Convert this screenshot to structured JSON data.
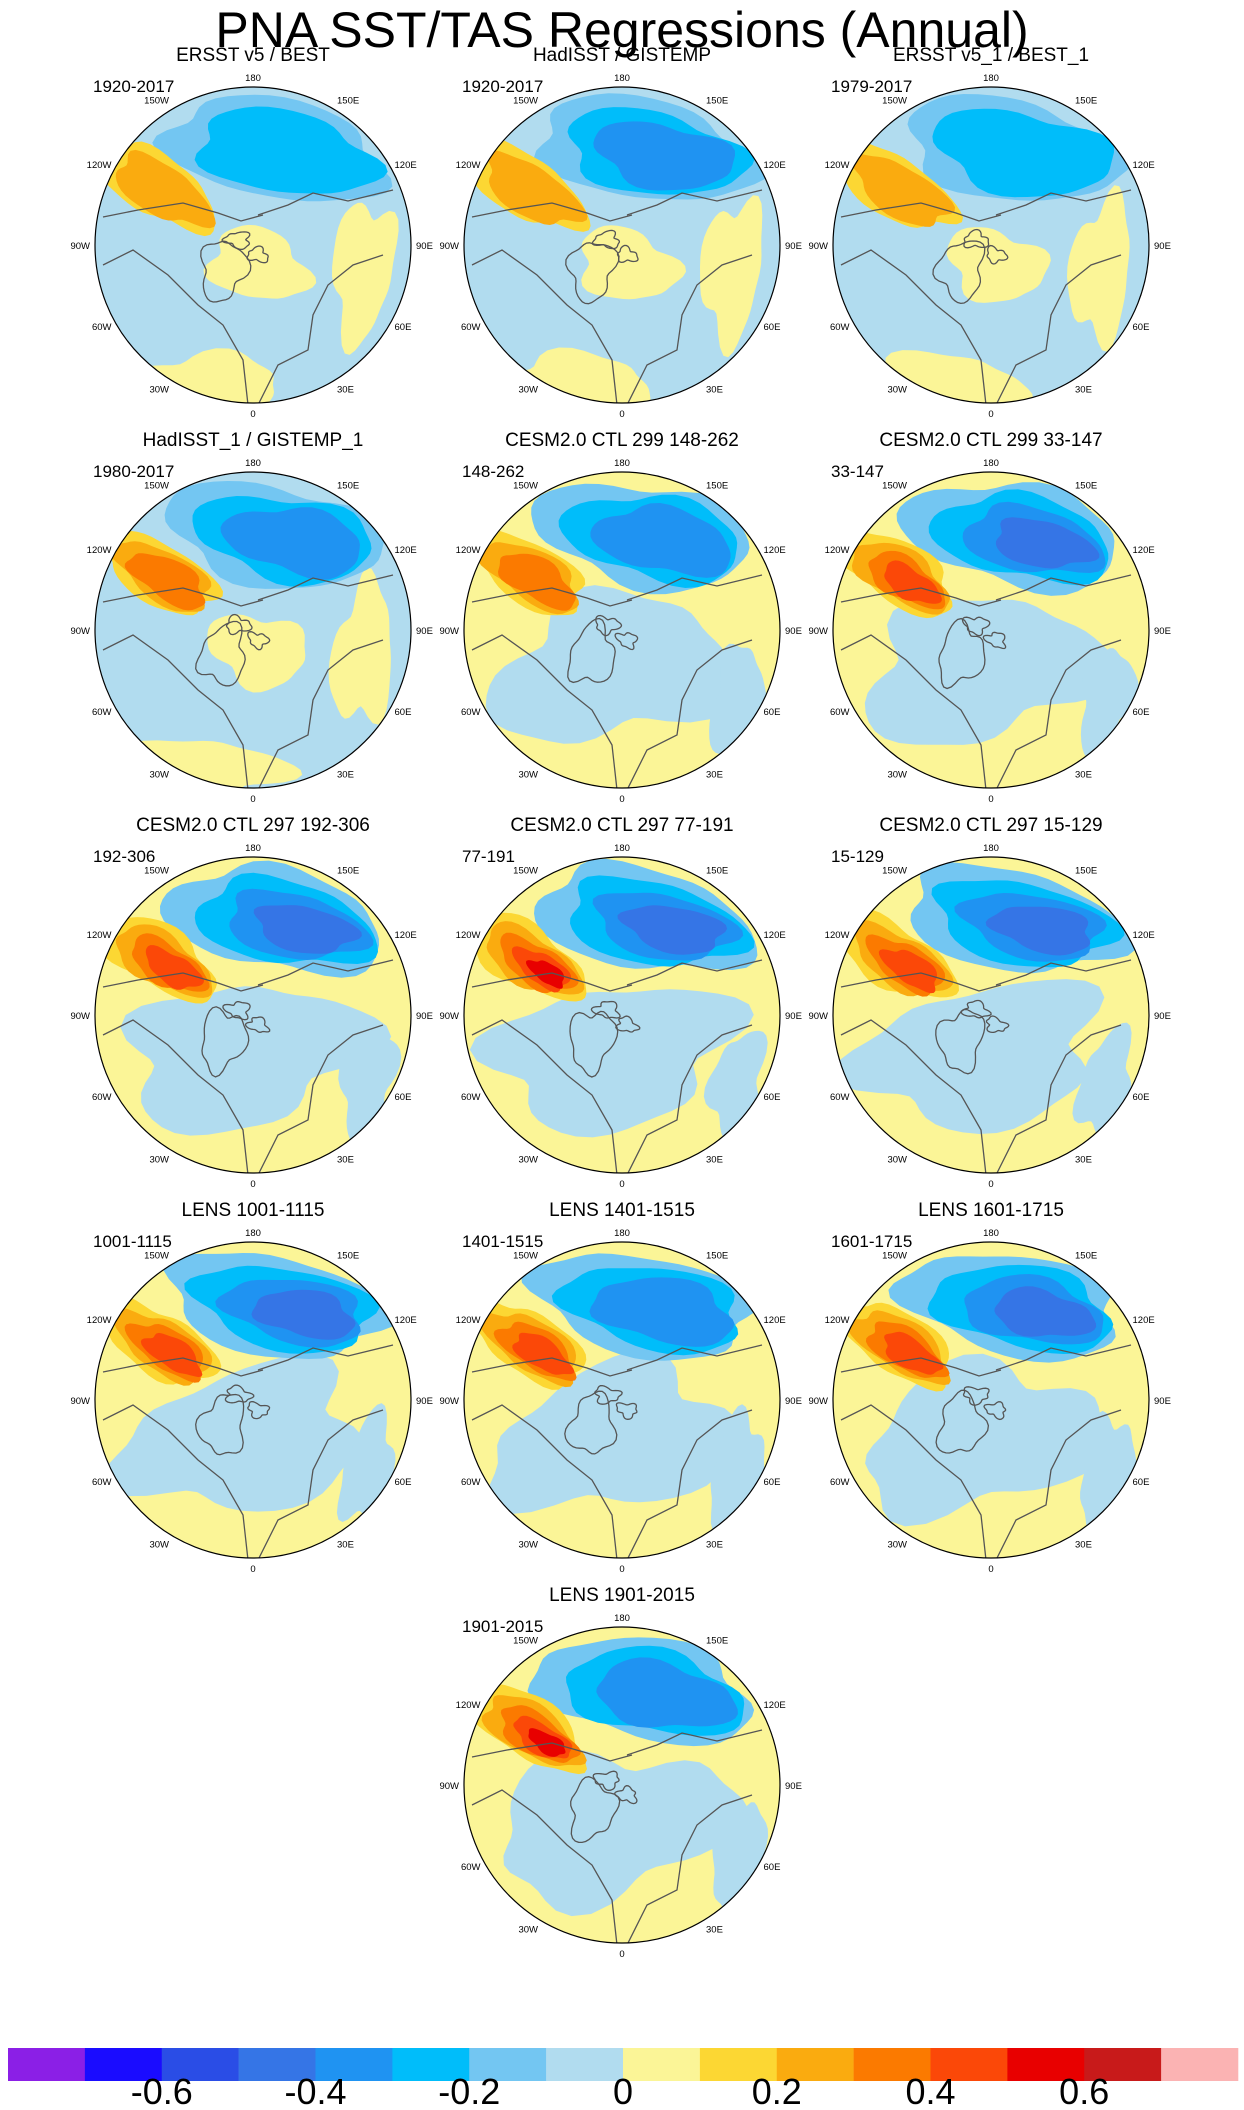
{
  "figure": {
    "title": "PNA SST/TAS Regressions (Annual)",
    "map_labels": {
      "north": "180",
      "south": "0",
      "west": "90W",
      "east": "90E",
      "nw_upper": "150W",
      "nw_lower": "120W",
      "ne_upper": "150E",
      "ne_lower": "120E",
      "sw_upper": "60W",
      "sw_lower": "30W",
      "se_upper": "60E",
      "se_lower": "30E"
    }
  },
  "colors": {
    "palette": [
      "#8b1fe6",
      "#1a0cff",
      "#2a4de6",
      "#3575e6",
      "#1f93f2",
      "#00bdfa",
      "#73c6f2",
      "#b1dcef",
      "#fbf597",
      "#fcd733",
      "#faab0f",
      "#fb7a00",
      "#fb4808",
      "#e80000",
      "#c81a1a",
      "#fbb3b3"
    ],
    "land_outline": "#555555"
  },
  "panels": [
    {
      "title": "ERSST v5 / BEST",
      "period": "1920-2017",
      "warm": 0.25,
      "cool": -0.28,
      "pattern": "obs"
    },
    {
      "title": "HadISST / GISTEMP",
      "period": "1920-2017",
      "warm": 0.28,
      "cool": -0.32,
      "pattern": "obs"
    },
    {
      "title": "ERSST v5_1 / BEST_1",
      "period": "1979-2017",
      "warm": 0.25,
      "cool": -0.28,
      "pattern": "obs"
    },
    {
      "title": "HadISST_1 / GISTEMP_1",
      "period": "1980-2017",
      "warm": 0.3,
      "cool": -0.33,
      "pattern": "obs"
    },
    {
      "title": "CESM2.0 CTL 299 148-262",
      "period": "148-262",
      "warm": 0.35,
      "cool": -0.35,
      "pattern": "model"
    },
    {
      "title": "CESM2.0 CTL 299 33-147",
      "period": "33-147",
      "warm": 0.42,
      "cool": -0.42,
      "pattern": "model"
    },
    {
      "title": "CESM2.0 CTL 297 192-306",
      "period": "192-306",
      "warm": 0.48,
      "cool": -0.42,
      "pattern": "model"
    },
    {
      "title": "CESM2.0 CTL 297 77-191",
      "period": "77-191",
      "warm": 0.55,
      "cool": -0.45,
      "pattern": "model"
    },
    {
      "title": "CESM2.0 CTL 297 15-129",
      "period": "15-129",
      "warm": 0.45,
      "cool": -0.42,
      "pattern": "model"
    },
    {
      "title": "LENS 1001-1115",
      "period": "1001-1115",
      "warm": 0.48,
      "cool": -0.4,
      "pattern": "model"
    },
    {
      "title": "LENS 1401-1515",
      "period": "1401-1515",
      "warm": 0.48,
      "cool": -0.38,
      "pattern": "model"
    },
    {
      "title": "LENS 1601-1715",
      "period": "1601-1715",
      "warm": 0.45,
      "cool": -0.42,
      "pattern": "model"
    },
    {
      "title": "LENS 1901-2015",
      "period": "1901-2015",
      "warm": 0.58,
      "cool": -0.38,
      "pattern": "model"
    }
  ],
  "colorbar": {
    "levels": [
      -0.7,
      -0.6,
      -0.5,
      -0.4,
      -0.3,
      -0.2,
      -0.1,
      0,
      0.1,
      0.2,
      0.3,
      0.4,
      0.5,
      0.6,
      0.7
    ],
    "labels": [
      {
        "text": "-0.6",
        "value": -0.6
      },
      {
        "text": "-0.4",
        "value": -0.4
      },
      {
        "text": "-0.2",
        "value": -0.2
      },
      {
        "text": "0",
        "value": 0
      },
      {
        "text": "0.2",
        "value": 0.2
      },
      {
        "text": "0.4",
        "value": 0.4
      },
      {
        "text": "0.6",
        "value": 0.6
      }
    ]
  }
}
